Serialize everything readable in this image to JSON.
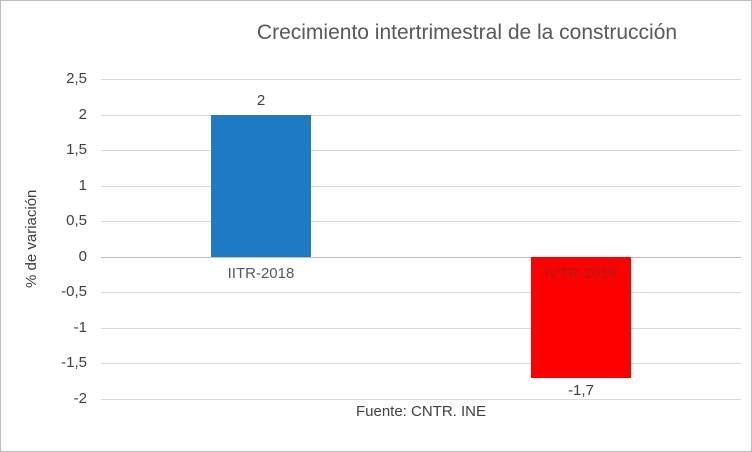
{
  "chart_data": {
    "type": "bar",
    "title": "Crecimiento intertrimestral de la construcción",
    "categories": [
      "IITR-2018",
      "IVTR-2019"
    ],
    "values": [
      2,
      -1.7
    ],
    "value_labels": [
      "2",
      "-1,7"
    ],
    "bar_colors": [
      "#1F7AC4",
      "#FF0000"
    ],
    "category_label_colors": [
      "#595959",
      "#A02020"
    ],
    "xlabel": "",
    "ylabel": "% de variación",
    "ylim": [
      -2,
      2.5
    ],
    "ytick_step": 0.5,
    "ytick_labels": [
      "2,5",
      "2",
      "1,5",
      "1",
      "0,5",
      "0",
      "-0,5",
      "-1",
      "-1,5",
      "-2"
    ],
    "grid": true,
    "legend": "none",
    "source_note": "Fuente: CNTR. INE"
  }
}
